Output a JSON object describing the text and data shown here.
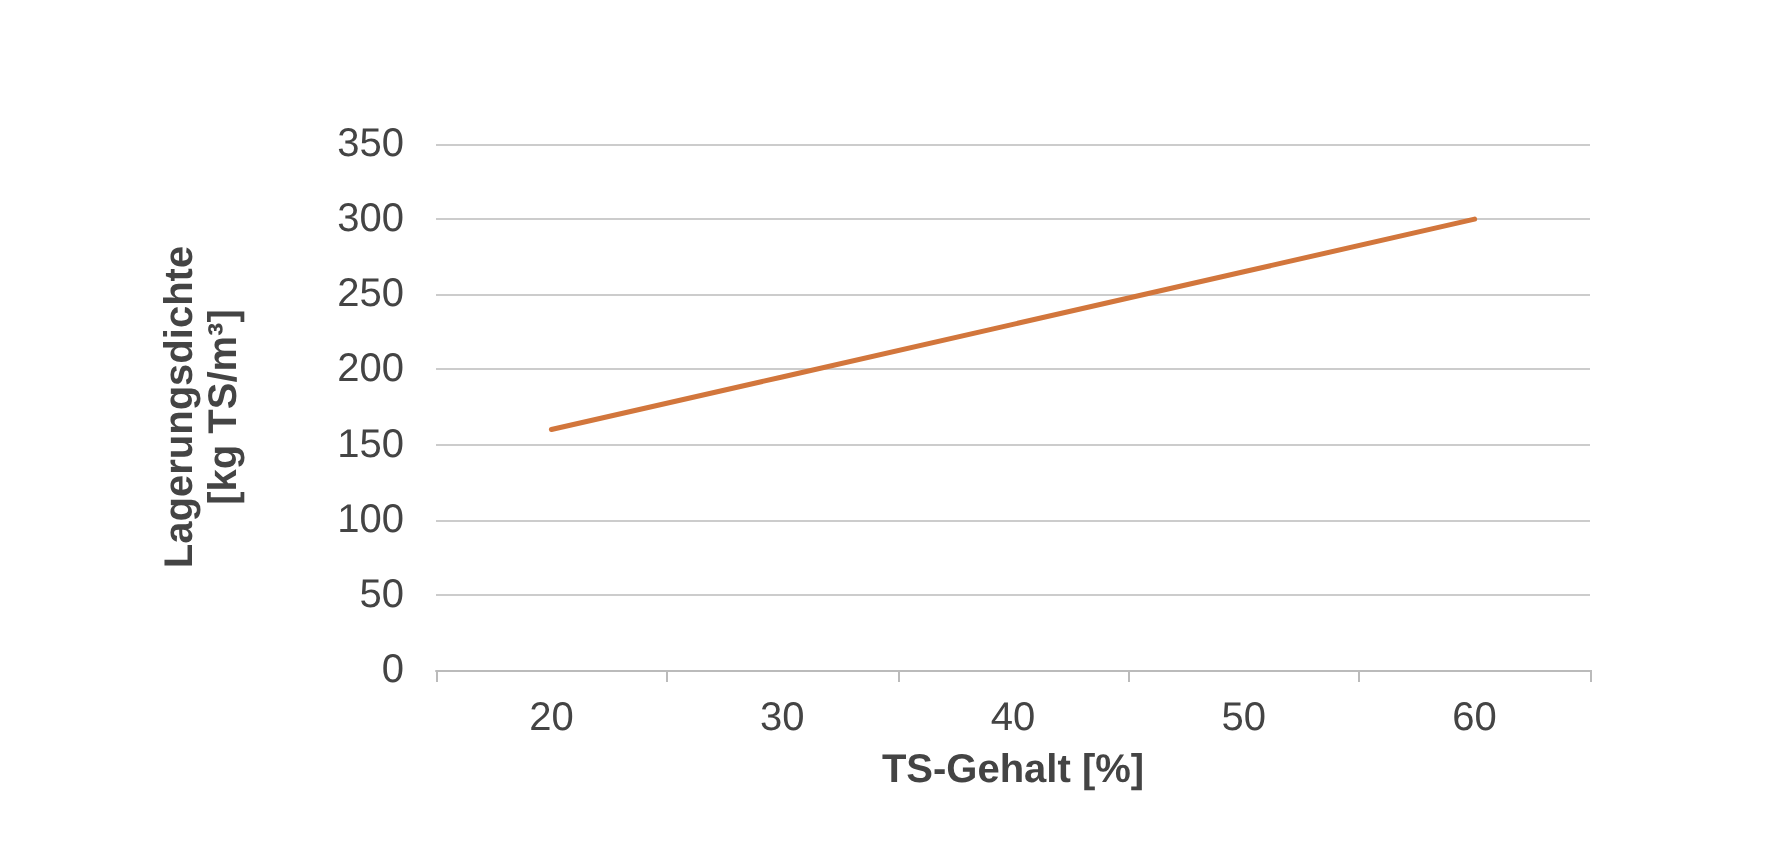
{
  "chart_data": {
    "type": "line",
    "xlabel": "TS-Gehalt [%]",
    "ylabel": "Lagerungsdichte\n[kg TS/m³]",
    "categories": [
      "20",
      "30",
      "40",
      "50",
      "60"
    ],
    "series": [
      {
        "color": "#d2763c",
        "values": [
          160,
          195,
          230,
          265,
          300
        ]
      }
    ],
    "ylim": [
      0,
      350
    ],
    "yticks": [
      0,
      50,
      100,
      150,
      200,
      250,
      300,
      350
    ],
    "grid": "y",
    "marker": "none",
    "line_style": "solid"
  }
}
